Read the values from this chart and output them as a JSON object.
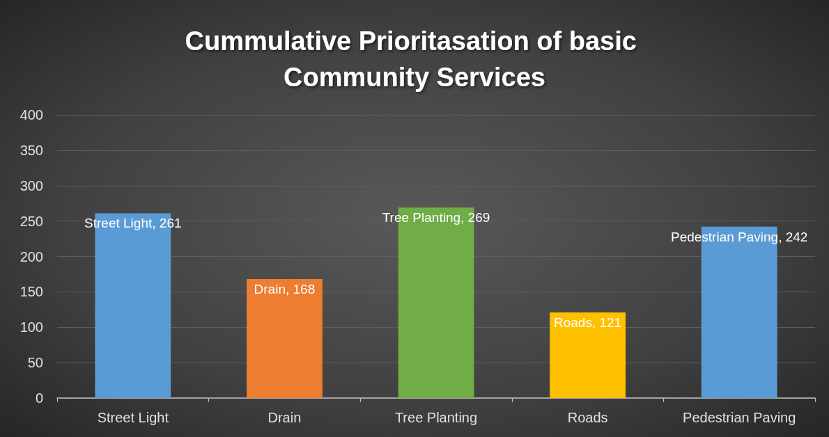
{
  "chart_data": {
    "type": "bar",
    "title": "Cummulative Prioritasation of basic Community Services",
    "categories": [
      "Street Light",
      "Drain",
      "Tree Planting",
      "Roads",
      "Pedestrian Paving"
    ],
    "values": [
      261,
      168,
      269,
      121,
      242
    ],
    "colors": [
      "#5b9bd5",
      "#ed7d31",
      "#70ad47",
      "#ffc000",
      "#5b9bd5"
    ],
    "value_labels": [
      "Street Light, 261",
      "Drain, 168",
      "Tree Planting, 269",
      "Roads, 121",
      "Pedestrian Paving, 242"
    ],
    "ylim": [
      0,
      400
    ],
    "yticks": [
      0,
      50,
      100,
      150,
      200,
      250,
      300,
      350,
      400
    ],
    "grid": "y"
  }
}
